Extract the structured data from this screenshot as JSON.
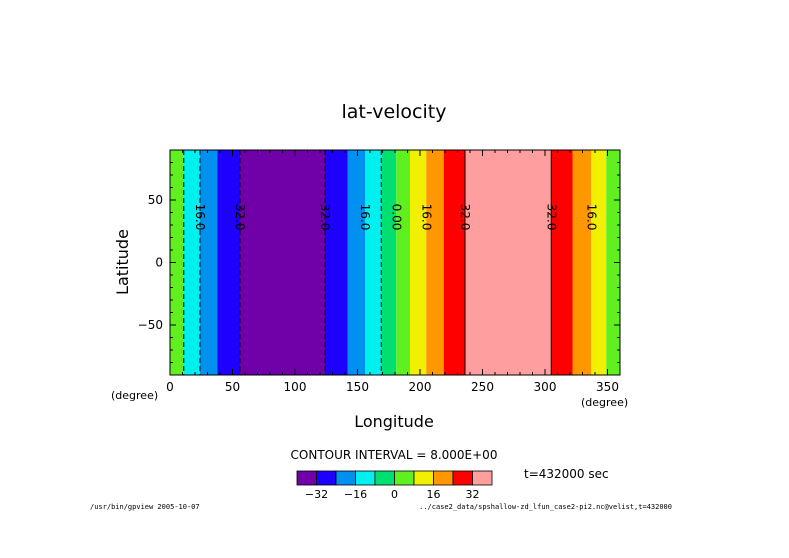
{
  "chart_data": {
    "type": "heatmap",
    "title": "lat-velocity",
    "xlabel": "Longitude",
    "ylabel": "Latitude",
    "x_unit": "(degree)",
    "y_unit": "(degree)",
    "xlim": [
      0,
      360
    ],
    "ylim": [
      -90,
      90
    ],
    "x_ticks": [
      0,
      50,
      100,
      150,
      200,
      250,
      300,
      350
    ],
    "y_ticks": [
      -50,
      0,
      50
    ],
    "bands": [
      {
        "x0": 0,
        "x1": 11,
        "level": 2
      },
      {
        "x0": 11,
        "x1": 24,
        "level": -1
      },
      {
        "x0": 24,
        "x1": 38,
        "level": -2
      },
      {
        "x0": 38,
        "x1": 56,
        "level": -3
      },
      {
        "x0": 56,
        "x1": 124,
        "level": -4
      },
      {
        "x0": 124,
        "x1": 142,
        "level": -3
      },
      {
        "x0": 142,
        "x1": 156,
        "level": -2
      },
      {
        "x0": 156,
        "x1": 169,
        "level": -1
      },
      {
        "x0": 169,
        "x1": 181,
        "level": 1
      },
      {
        "x0": 181,
        "x1": 192,
        "level": 2
      },
      {
        "x0": 192,
        "x1": 205,
        "level": 3
      },
      {
        "x0": 205,
        "x1": 219,
        "level": 4
      },
      {
        "x0": 219,
        "x1": 236,
        "level": 5
      },
      {
        "x0": 236,
        "x1": 305,
        "level": 6
      },
      {
        "x0": 305,
        "x1": 322,
        "level": 5
      },
      {
        "x0": 322,
        "x1": 337,
        "level": 4
      },
      {
        "x0": 337,
        "x1": 349,
        "level": 3
      },
      {
        "x0": 349,
        "x1": 360,
        "level": 2
      }
    ],
    "contours": [
      {
        "x": 11,
        "dashed": true
      },
      {
        "x": 24,
        "dashed": true
      },
      {
        "x": 56,
        "dashed": true
      },
      {
        "x": 124,
        "dashed": true
      },
      {
        "x": 169,
        "dashed": true
      },
      {
        "x": 236,
        "dashed": false
      },
      {
        "x": 305,
        "dashed": false
      }
    ],
    "contour_labels": [
      {
        "x": 24,
        "text": "16.0"
      },
      {
        "x": 56,
        "text": "32.0"
      },
      {
        "x": 124,
        "text": "32.0"
      },
      {
        "x": 156,
        "text": "16.0"
      },
      {
        "x": 181,
        "text": "0.00"
      },
      {
        "x": 205,
        "text": "16.0"
      },
      {
        "x": 236,
        "text": "32.0"
      },
      {
        "x": 305,
        "text": "32.0"
      },
      {
        "x": 337,
        "text": "16.0"
      }
    ],
    "colorbar": {
      "levels": [
        -4,
        -3,
        -2,
        -1,
        1,
        2,
        3,
        4,
        5,
        6
      ],
      "colors": [
        "#7000a8",
        "#1e00ff",
        "#0090f0",
        "#00f0f0",
        "#00e070",
        "#60f020",
        "#f0f000",
        "#ff9800",
        "#ff0000",
        "#ff9e9e"
      ],
      "tick_labels": [
        "−32",
        "−16",
        "0",
        "16",
        "32"
      ]
    },
    "contour_interval": "CONTOUR INTERVAL = 8.000E+00",
    "time_label": "t=432000 sec"
  },
  "footer": {
    "left": "/usr/bin/gpview  2005-10-07",
    "right": "../case2_data/spshallow-zd_lfun_case2-pi2.nc@velist,t=432000"
  }
}
